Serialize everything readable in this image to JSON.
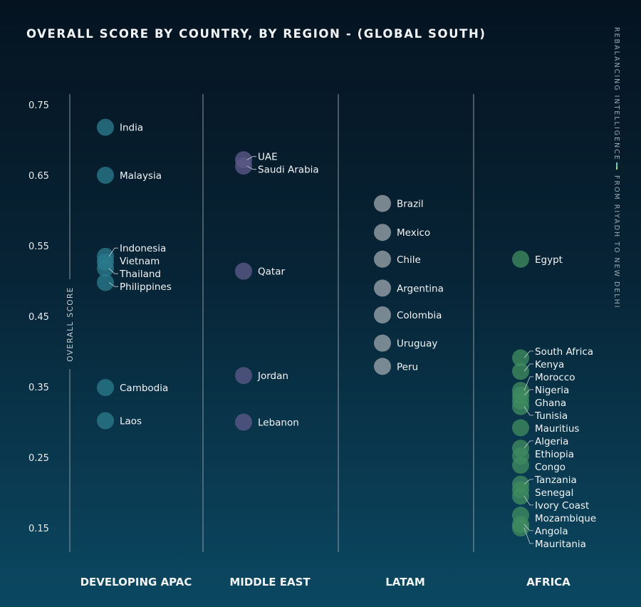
{
  "chart_data": {
    "type": "scatter",
    "title": "OVERALL SCORE BY COUNTRY, BY REGION - (GLOBAL SOUTH)",
    "side_text": [
      "REBALANCING INTELLIGENCE",
      "FROM RIYADH TO NEW DELHI"
    ],
    "ylabel": "OVERALL SCORE",
    "ylim": [
      0.12,
      0.77
    ],
    "yticks": [
      "0.75",
      "0.65",
      "0.55",
      "0.45",
      "0.35",
      "0.25",
      "0.15"
    ],
    "grid": false,
    "regions": [
      {
        "name": "DEVELOPING APAC",
        "color": "#2a7a8c",
        "points": [
          {
            "country": "India",
            "value": 0.718
          },
          {
            "country": "Malaysia",
            "value": 0.65
          },
          {
            "country": "Indonesia",
            "value": 0.535
          },
          {
            "country": "Vietnam",
            "value": 0.527
          },
          {
            "country": "Thailand",
            "value": 0.518
          },
          {
            "country": "Philippines",
            "value": 0.498
          },
          {
            "country": "Cambodia",
            "value": 0.349
          },
          {
            "country": "Laos",
            "value": 0.302
          }
        ]
      },
      {
        "name": "MIDDLE EAST",
        "color": "#5b5a88",
        "points": [
          {
            "country": "UAE",
            "value": 0.672
          },
          {
            "country": "Saudi Arabia",
            "value": 0.663
          },
          {
            "country": "Qatar",
            "value": 0.514
          },
          {
            "country": "Jordan",
            "value": 0.366
          },
          {
            "country": "Lebanon",
            "value": 0.3
          }
        ]
      },
      {
        "name": "LATAM",
        "color": "#98a3ab",
        "points": [
          {
            "country": "Brazil",
            "value": 0.61
          },
          {
            "country": "Mexico",
            "value": 0.569
          },
          {
            "country": "Chile",
            "value": 0.531
          },
          {
            "country": "Argentina",
            "value": 0.49
          },
          {
            "country": "Colombia",
            "value": 0.452
          },
          {
            "country": "Uruguay",
            "value": 0.412
          },
          {
            "country": "Peru",
            "value": 0.379
          }
        ]
      },
      {
        "name": "AFRICA",
        "color": "#3f8b5f",
        "points": [
          {
            "country": "Egypt",
            "value": 0.531
          },
          {
            "country": "South Africa",
            "value": 0.391
          },
          {
            "country": "Kenya",
            "value": 0.372
          },
          {
            "country": "Morocco",
            "value": 0.345
          },
          {
            "country": "Nigeria",
            "value": 0.338
          },
          {
            "country": "Ghana",
            "value": 0.33
          },
          {
            "country": "Tunisia",
            "value": 0.322
          },
          {
            "country": "Mauritius",
            "value": 0.292
          },
          {
            "country": "Algeria",
            "value": 0.263
          },
          {
            "country": "Ethiopia",
            "value": 0.252
          },
          {
            "country": "Congo",
            "value": 0.239
          },
          {
            "country": "Tanzania",
            "value": 0.212
          },
          {
            "country": "Senegal",
            "value": 0.204
          },
          {
            "country": "Ivory Coast",
            "value": 0.195
          },
          {
            "country": "Mozambique",
            "value": 0.168
          },
          {
            "country": "Angola",
            "value": 0.155
          },
          {
            "country": "Mauritania",
            "value": 0.15
          }
        ]
      }
    ]
  }
}
